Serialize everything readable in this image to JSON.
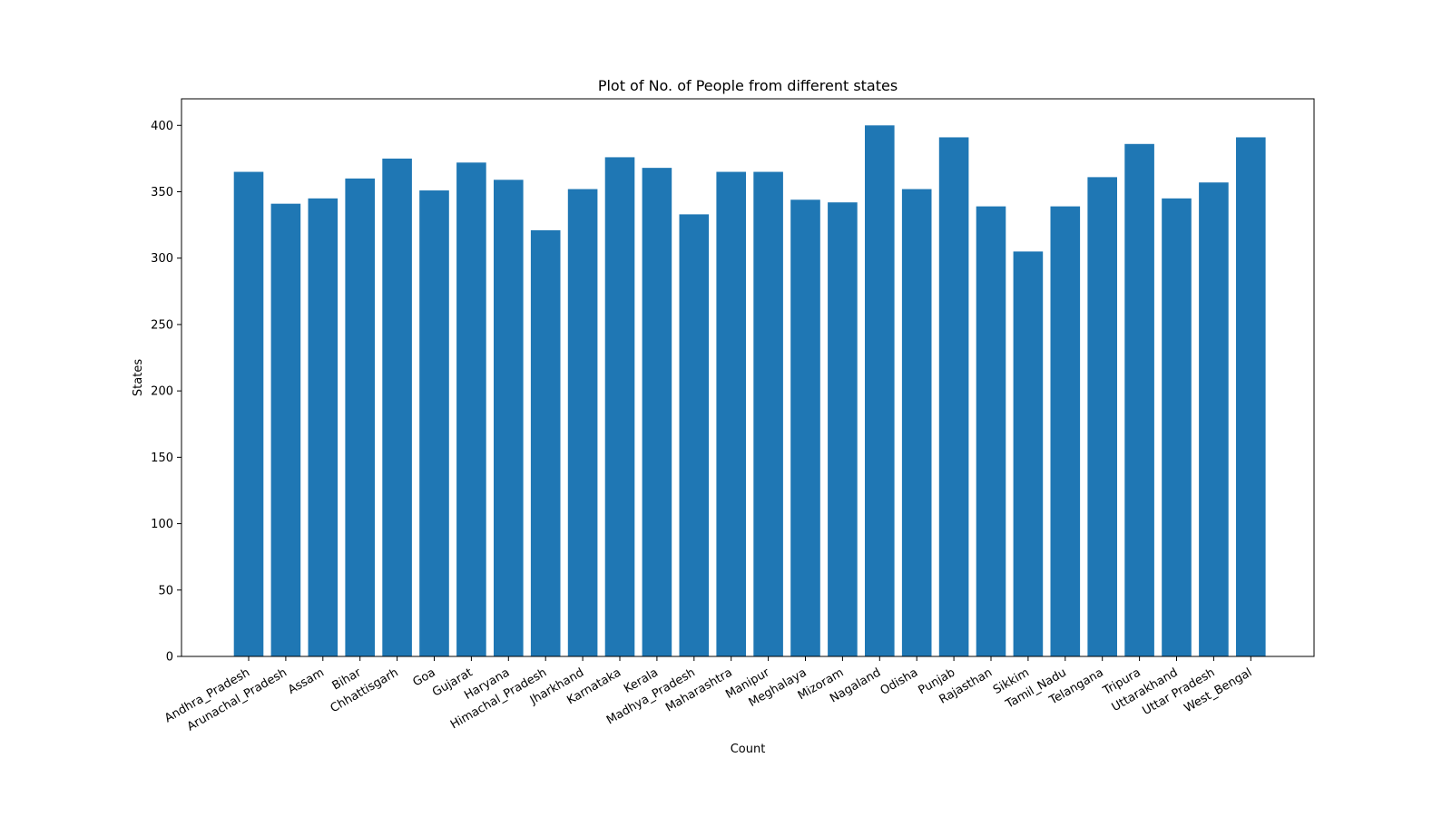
{
  "chart_data": {
    "type": "bar",
    "title": "Plot of No. of People from different states",
    "xlabel": "Count",
    "ylabel": "States",
    "ylim": [
      0,
      420
    ],
    "yticks": [
      0,
      50,
      100,
      150,
      200,
      250,
      300,
      350,
      400
    ],
    "grid": false,
    "bar_color": "#1f77b4",
    "categories": [
      "Andhra_Pradesh",
      "Arunachal_Pradesh",
      "Assam",
      "Bihar",
      "Chhattisgarh",
      "Goa",
      "Gujarat",
      "Haryana",
      "Himachal_Pradesh",
      "Jharkhand",
      "Karnataka",
      "Kerala",
      "Madhya_Pradesh",
      "Maharashtra",
      "Manipur",
      "Meghalaya",
      "Mizoram",
      "Nagaland",
      "Odisha",
      "Punjab",
      "Rajasthan",
      "Sikkim",
      "Tamil_Nadu",
      "Telangana",
      "Tripura",
      "Uttarakhand",
      "Uttar Pradesh",
      "West_Bengal"
    ],
    "values": [
      365,
      341,
      345,
      360,
      375,
      351,
      372,
      359,
      321,
      352,
      376,
      368,
      333,
      365,
      365,
      344,
      342,
      400,
      352,
      391,
      339,
      305,
      339,
      361,
      386,
      345,
      357,
      391
    ]
  }
}
